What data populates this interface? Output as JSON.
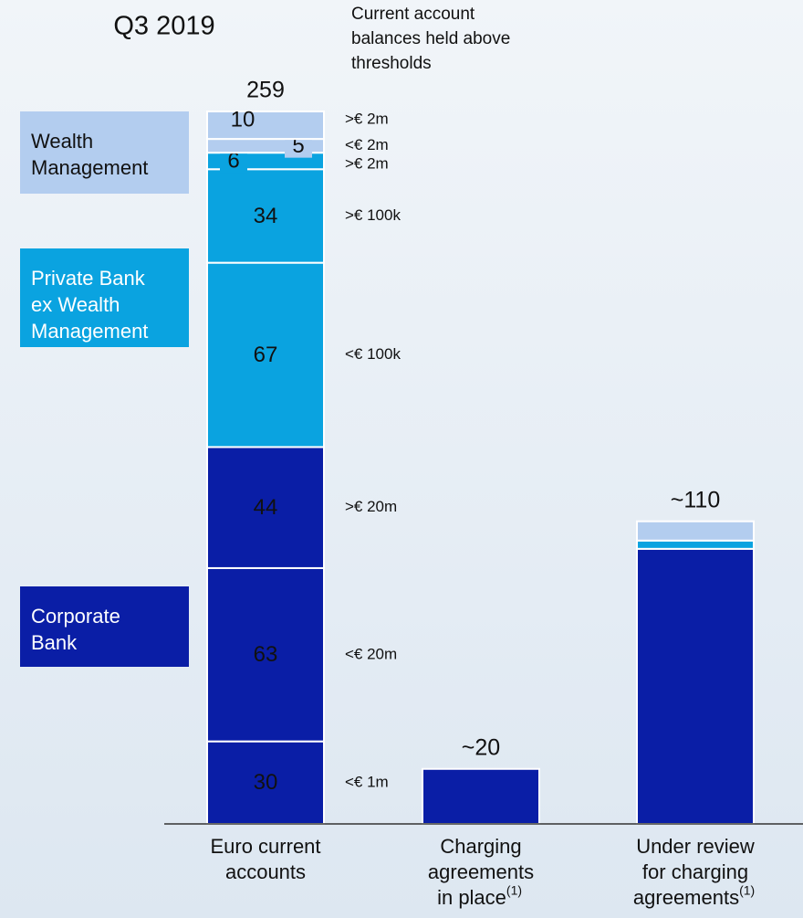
{
  "chart_data": {
    "type": "stacked-bar",
    "title": "Q3 2019",
    "subtitle_lines": [
      "Current account",
      "balances held above",
      "thresholds"
    ],
    "categories": [
      {
        "lines": [
          "Euro current",
          "accounts"
        ]
      },
      {
        "lines": [
          "Charging",
          "agreements",
          "in place"
        ],
        "note": "(1)"
      },
      {
        "lines": [
          "Under review",
          "for charging",
          "agreements"
        ],
        "note": "(1)"
      }
    ],
    "legend": [
      {
        "name": "Wealth Management",
        "color": "#b3cdef"
      },
      {
        "name": "Private Bank ex Wealth Management",
        "color": "#0aa3e0"
      },
      {
        "name": "Corporate Bank",
        "color": "#0a1ea6"
      }
    ],
    "series": [
      {
        "name": "<€ 1m",
        "color": "#0a1ea6",
        "values": [
          30,
          20,
          100
        ]
      },
      {
        "name": "<€ 20m",
        "color": "#0a1ea6",
        "values": [
          63,
          null,
          null
        ]
      },
      {
        "name": ">€ 20m",
        "color": "#0a1ea6",
        "values": [
          44,
          null,
          null
        ]
      },
      {
        "name": "<€ 100k",
        "color": "#0aa3e0",
        "values": [
          67,
          null,
          null
        ]
      },
      {
        "name": ">€ 100k",
        "color": "#0aa3e0",
        "values": [
          34,
          null,
          3
        ]
      },
      {
        "name": ">€ 2m",
        "color": "#0aa3e0",
        "values": [
          6,
          null,
          null
        ]
      },
      {
        "name": "<€ 2m",
        "color": "#b3cdef",
        "values": [
          5,
          null,
          null
        ]
      },
      {
        "name": ">€ 2m",
        "color": "#b3cdef",
        "values": [
          10,
          null,
          7
        ]
      }
    ],
    "totals": {
      "values": [
        259,
        20,
        110
      ],
      "value_labels": [
        "259",
        "~20",
        "~110"
      ]
    }
  }
}
